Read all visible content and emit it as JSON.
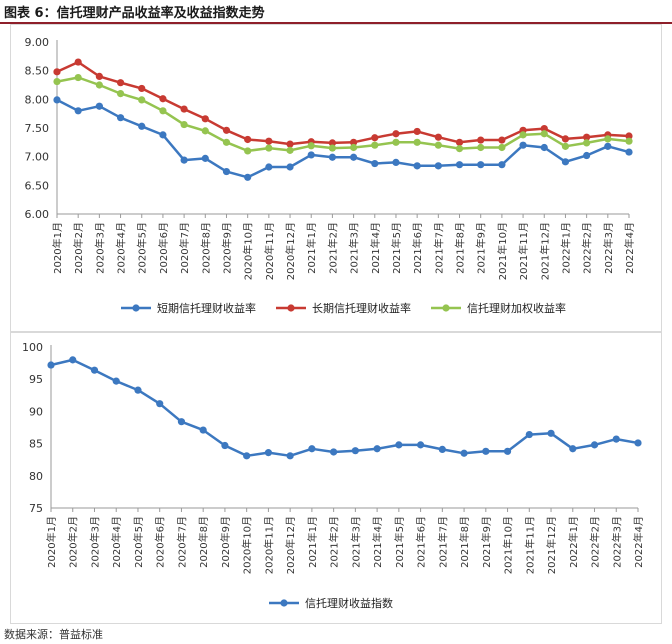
{
  "header": {
    "title": "图表 6：信托理财产品收益率及收益指数走势"
  },
  "source": "数据来源：普益标准",
  "chart_data": [
    {
      "type": "line",
      "title": "",
      "categories": [
        "2020年1月",
        "2020年2月",
        "2020年3月",
        "2020年4月",
        "2020年5月",
        "2020年6月",
        "2020年7月",
        "2020年8月",
        "2020年9月",
        "2020年10月",
        "2020年11月",
        "2020年12月",
        "2021年1月",
        "2021年2月",
        "2021年3月",
        "2021年4月",
        "2021年5月",
        "2021年6月",
        "2021年7月",
        "2021年8月",
        "2021年9月",
        "2021年10月",
        "2021年11月",
        "2021年12月",
        "2022年1月",
        "2022年2月",
        "2022年3月",
        "2022年4月"
      ],
      "ylim": [
        6.0,
        9.0
      ],
      "yticks": [
        "6.00",
        "6.50",
        "7.00",
        "7.50",
        "8.00",
        "8.50",
        "9.00"
      ],
      "ytick_values": [
        6.0,
        6.5,
        7.0,
        7.5,
        8.0,
        8.5,
        9.0
      ],
      "legend_position": "bottom",
      "series": [
        {
          "name": "短期信托理财收益率",
          "color": "#3c78c0",
          "values": [
            7.99,
            7.8,
            7.88,
            7.68,
            7.53,
            7.38,
            6.94,
            6.97,
            6.74,
            6.64,
            6.82,
            6.82,
            7.03,
            6.99,
            6.99,
            6.88,
            6.9,
            6.84,
            6.84,
            6.86,
            6.86,
            6.86,
            7.2,
            7.16,
            6.91,
            7.02,
            7.18,
            7.08
          ]
        },
        {
          "name": "长期信托理财收益率",
          "color": "#c83a32",
          "values": [
            8.48,
            8.65,
            8.4,
            8.29,
            8.19,
            8.01,
            7.83,
            7.66,
            7.46,
            7.3,
            7.27,
            7.22,
            7.26,
            7.24,
            7.25,
            7.33,
            7.4,
            7.44,
            7.34,
            7.25,
            7.29,
            7.29,
            7.46,
            7.49,
            7.31,
            7.34,
            7.38,
            7.36
          ]
        },
        {
          "name": "信托理财加权收益率",
          "color": "#95c450",
          "values": [
            8.31,
            8.38,
            8.25,
            8.1,
            7.99,
            7.8,
            7.56,
            7.45,
            7.25,
            7.1,
            7.15,
            7.11,
            7.19,
            7.15,
            7.16,
            7.2,
            7.25,
            7.25,
            7.2,
            7.14,
            7.16,
            7.16,
            7.38,
            7.4,
            7.18,
            7.24,
            7.31,
            7.27
          ]
        }
      ]
    },
    {
      "type": "line",
      "title": "",
      "categories": [
        "2020年1月",
        "2020年2月",
        "2020年3月",
        "2020年4月",
        "2020年5月",
        "2020年6月",
        "2020年7月",
        "2020年8月",
        "2020年9月",
        "2020年10月",
        "2020年11月",
        "2020年12月",
        "2021年1月",
        "2021年2月",
        "2021年3月",
        "2021年4月",
        "2021年5月",
        "2021年6月",
        "2021年7月",
        "2021年8月",
        "2021年9月",
        "2021年10月",
        "2021年11月",
        "2021年12月",
        "2022年1月",
        "2022年2月",
        "2022年3月",
        "2022年4月"
      ],
      "ylim": [
        75,
        100
      ],
      "yticks": [
        "75",
        "80",
        "85",
        "90",
        "95",
        "100"
      ],
      "ytick_values": [
        75,
        80,
        85,
        90,
        95,
        100
      ],
      "legend_position": "bottom",
      "series": [
        {
          "name": "信托理财收益指数",
          "color": "#3c78c0",
          "values": [
            97.2,
            98.0,
            96.4,
            94.7,
            93.3,
            91.2,
            88.4,
            87.1,
            84.7,
            83.1,
            83.6,
            83.1,
            84.2,
            83.7,
            83.9,
            84.2,
            84.8,
            84.8,
            84.1,
            83.5,
            83.8,
            83.8,
            86.4,
            86.6,
            84.2,
            84.8,
            85.7,
            85.1
          ]
        }
      ]
    }
  ]
}
